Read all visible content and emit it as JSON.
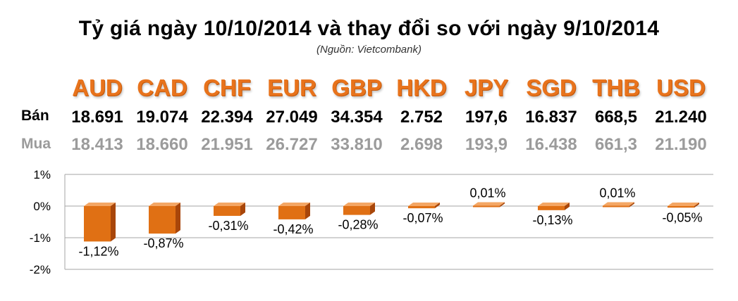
{
  "title": "Tỷ giá ngày 10/10/2014 và thay đổi so với ngày 9/10/2014",
  "source": "(Nguồn: Vietcombank)",
  "rows": {
    "sell_label": "Bán",
    "buy_label": "Mua"
  },
  "currencies": [
    {
      "code": "AUD",
      "sell": "18.691",
      "buy": "18.413"
    },
    {
      "code": "CAD",
      "sell": "19.074",
      "buy": "18.660"
    },
    {
      "code": "CHF",
      "sell": "22.394",
      "buy": "21.951"
    },
    {
      "code": "EUR",
      "sell": "27.049",
      "buy": "26.727"
    },
    {
      "code": "GBP",
      "sell": "34.354",
      "buy": "33.810"
    },
    {
      "code": "HKD",
      "sell": "2.752",
      "buy": "2.698"
    },
    {
      "code": "JPY",
      "sell": "197,6",
      "buy": "193,9"
    },
    {
      "code": "SGD",
      "sell": "16.837",
      "buy": "16.438"
    },
    {
      "code": "THB",
      "sell": "668,5",
      "buy": "661,3"
    },
    {
      "code": "USD",
      "sell": "21.240",
      "buy": "21.190"
    }
  ],
  "colors": {
    "bar_front": "#e07014",
    "bar_side": "#a8460a",
    "bar_top": "#f4a765",
    "grid": "#a6a6a6",
    "code_text": "#e8731c"
  },
  "chart_data": {
    "type": "bar",
    "categories": [
      "AUD",
      "CAD",
      "CHF",
      "EUR",
      "GBP",
      "HKD",
      "JPY",
      "SGD",
      "THB",
      "USD"
    ],
    "values": [
      -1.12,
      -0.87,
      -0.31,
      -0.42,
      -0.28,
      -0.07,
      0.01,
      -0.13,
      0.01,
      -0.05
    ],
    "data_labels": [
      "-1,12%",
      "-0,87%",
      "-0,31%",
      "-0,42%",
      "-0,28%",
      "-0,07%",
      "0,01%",
      "-0,13%",
      "0,01%",
      "-0,05%"
    ],
    "ylim": [
      -2,
      1
    ],
    "y_ticks": [
      {
        "value": 1,
        "label": "1%"
      },
      {
        "value": 0,
        "label": "0%"
      },
      {
        "value": -1,
        "label": "-1%"
      },
      {
        "value": -2,
        "label": "-2%"
      }
    ],
    "grid": true,
    "legend": false,
    "style": "3d-bar"
  }
}
